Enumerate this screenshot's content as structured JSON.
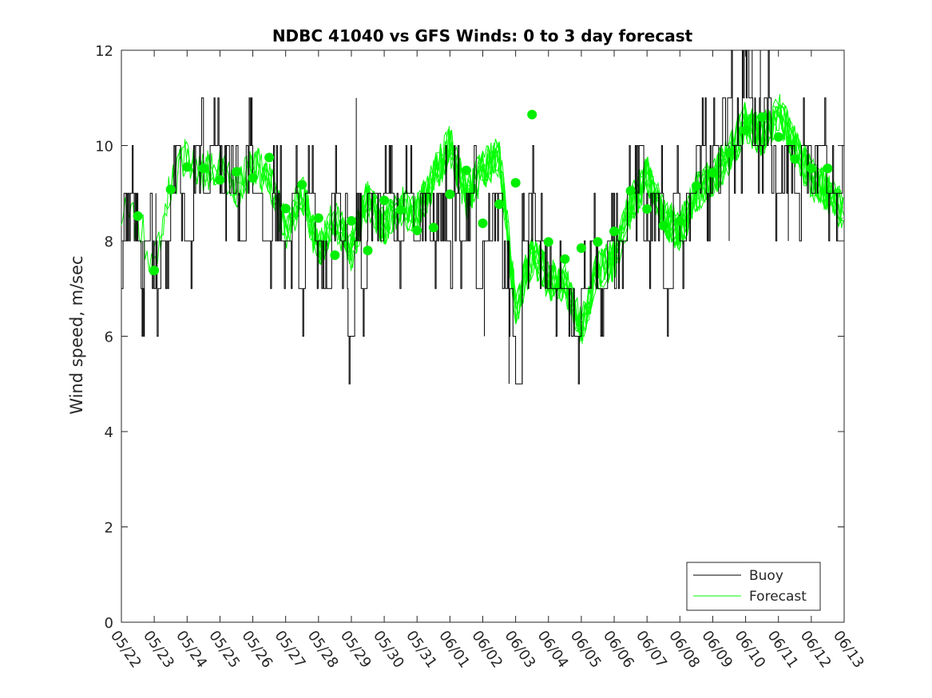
{
  "chart_data": {
    "type": "line",
    "title": "NDBC 41040 vs GFS Winds: 0 to 3 day forecast",
    "xlabel": "",
    "ylabel": "Wind speed, m/sec",
    "xlim": [
      "05/22",
      "06/13"
    ],
    "ylim": [
      0,
      12
    ],
    "x_tick_labels": [
      "05/22",
      "05/23",
      "05/24",
      "05/25",
      "05/26",
      "05/27",
      "05/28",
      "05/29",
      "05/30",
      "05/31",
      "06/01",
      "06/02",
      "06/03",
      "06/04",
      "06/05",
      "06/06",
      "06/07",
      "06/08",
      "06/09",
      "06/10",
      "06/11",
      "06/12",
      "06/13"
    ],
    "y_ticks": [
      0,
      2,
      4,
      6,
      8,
      10,
      12
    ],
    "grid": false,
    "legend": {
      "placement": "bottom-right",
      "entries": [
        "Buoy",
        "Forecast"
      ]
    },
    "colors": {
      "buoy": "#000000",
      "forecast": "#00ff00",
      "markers": "#00ee00"
    },
    "series": [
      {
        "name": "Buoy",
        "style": "step",
        "points": [
          [
            0,
            7
          ],
          [
            0.05,
            8
          ],
          [
            0.15,
            9
          ],
          [
            0.5,
            8
          ],
          [
            0.6,
            7
          ],
          [
            0.7,
            8
          ],
          [
            1.0,
            7
          ],
          [
            1.2,
            8
          ],
          [
            1.5,
            9
          ],
          [
            1.6,
            10
          ],
          [
            1.8,
            9
          ],
          [
            2.0,
            8
          ],
          [
            2.2,
            10
          ],
          [
            2.5,
            9
          ],
          [
            2.7,
            10
          ],
          [
            3.0,
            9
          ],
          [
            3.2,
            10
          ],
          [
            3.4,
            9
          ],
          [
            3.6,
            8
          ],
          [
            3.8,
            10
          ],
          [
            4.0,
            9
          ],
          [
            4.3,
            8
          ],
          [
            4.6,
            9
          ],
          [
            4.9,
            8
          ],
          [
            5.2,
            9
          ],
          [
            5.4,
            7
          ],
          [
            5.6,
            9
          ],
          [
            5.9,
            8
          ],
          [
            6.1,
            7
          ],
          [
            6.4,
            9
          ],
          [
            6.7,
            8
          ],
          [
            6.9,
            6
          ],
          [
            7.1,
            8
          ],
          [
            7.3,
            7
          ],
          [
            7.5,
            9
          ],
          [
            7.8,
            8
          ],
          [
            8.0,
            9
          ],
          [
            8.3,
            8
          ],
          [
            8.6,
            9
          ],
          [
            8.9,
            8
          ],
          [
            9.1,
            9
          ],
          [
            9.4,
            8
          ],
          [
            9.6,
            9
          ],
          [
            9.9,
            8
          ],
          [
            10.1,
            9
          ],
          [
            10.3,
            8
          ],
          [
            10.5,
            9
          ],
          [
            10.8,
            7
          ],
          [
            11.0,
            8
          ],
          [
            11.3,
            9
          ],
          [
            11.6,
            7
          ],
          [
            11.8,
            6
          ],
          [
            12.0,
            5
          ],
          [
            12.2,
            8
          ],
          [
            12.4,
            9
          ],
          [
            12.6,
            8
          ],
          [
            12.9,
            7
          ],
          [
            13.2,
            7
          ],
          [
            13.5,
            7
          ],
          [
            13.7,
            6
          ],
          [
            14.0,
            7
          ],
          [
            14.3,
            8
          ],
          [
            14.5,
            7
          ],
          [
            14.8,
            8
          ],
          [
            15.1,
            8
          ],
          [
            15.4,
            9
          ],
          [
            15.7,
            10
          ],
          [
            15.9,
            8
          ],
          [
            16.2,
            9
          ],
          [
            16.5,
            7
          ],
          [
            16.8,
            9
          ],
          [
            17.0,
            8
          ],
          [
            17.2,
            9
          ],
          [
            17.5,
            10
          ],
          [
            17.8,
            9
          ],
          [
            18.0,
            10
          ],
          [
            18.3,
            11
          ],
          [
            18.6,
            10
          ],
          [
            18.9,
            12
          ],
          [
            19.1,
            11
          ],
          [
            19.3,
            10
          ],
          [
            19.6,
            11
          ],
          [
            19.8,
            9
          ],
          [
            20.1,
            10
          ],
          [
            20.4,
            9
          ],
          [
            20.7,
            10
          ],
          [
            21.0,
            9
          ],
          [
            21.2,
            10
          ],
          [
            21.5,
            9
          ]
        ],
        "spike_segments": [
          [
            0.65,
            6,
            8
          ],
          [
            1.05,
            7,
            9
          ],
          [
            7.15,
            8,
            11
          ],
          [
            11.05,
            6,
            8
          ],
          [
            11.8,
            5,
            8
          ],
          [
            12.2,
            5,
            9
          ],
          [
            18.9,
            11,
            12
          ],
          [
            19.2,
            11,
            12
          ],
          [
            19.45,
            11,
            12
          ],
          [
            18.5,
            8,
            10
          ],
          [
            20.3,
            8,
            10
          ]
        ]
      },
      {
        "name": "Forecast",
        "style": "ensemble-lines",
        "anchor_x": [
          0,
          0.5,
          1,
          1.5,
          2,
          2.5,
          3,
          3.5,
          4,
          4.5,
          5,
          5.5,
          6,
          6.5,
          7,
          7.5,
          8,
          8.5,
          9,
          9.5,
          10,
          10.5,
          11,
          11.5,
          12,
          12.5,
          13,
          13.5,
          14,
          14.5,
          15,
          15.5,
          16,
          16.5,
          17,
          17.5,
          18,
          18.5,
          19,
          19.5,
          20,
          20.5,
          21,
          21.5,
          22
        ],
        "anchor_y": [
          8.5,
          8.4,
          7.5,
          9.2,
          9.8,
          9.4,
          9.6,
          9.1,
          9.6,
          9.3,
          8.2,
          9.0,
          7.8,
          8.5,
          7.8,
          8.9,
          8.3,
          8.7,
          8.6,
          9.3,
          10.0,
          8.9,
          9.5,
          9.8,
          6.6,
          7.7,
          7.2,
          7.1,
          6.2,
          7.4,
          7.6,
          8.7,
          9.4,
          8.5,
          8.2,
          9.0,
          9.3,
          9.8,
          10.5,
          10.2,
          10.7,
          10.0,
          9.3,
          9.0,
          8.6
        ],
        "run_count": 9
      },
      {
        "name": "Forecast markers",
        "style": "markers",
        "x": [
          0.5,
          1,
          1.5,
          2,
          2.5,
          3,
          3.5,
          4,
          4.5,
          5,
          5.5,
          6,
          6.5,
          7,
          7.5,
          8,
          8.5,
          9,
          9.5,
          10,
          10.5,
          11,
          11.5,
          12,
          12.5,
          13,
          13.5,
          14,
          14.5,
          15,
          15.5,
          16,
          16.5,
          17,
          17.5,
          18,
          18.5,
          19,
          19.5,
          20,
          20.5,
          21,
          21.5
        ],
        "y": [
          8.52,
          7.38,
          9.08,
          9.55,
          9.52,
          9.28,
          9.45,
          9.32,
          9.75,
          8.68,
          9.18,
          8.48,
          7.7,
          8.42,
          7.8,
          8.85,
          8.65,
          8.22,
          8.28,
          8.98,
          9.48,
          8.37,
          8.77,
          9.22,
          10.65,
          7.98,
          7.62,
          7.85,
          7.98,
          8.2,
          9.05,
          8.67,
          8.32,
          8.42,
          9.15,
          9.43,
          9.85,
          10.32,
          10.6,
          10.18,
          9.72,
          9.52,
          9.52
        ]
      }
    ]
  }
}
